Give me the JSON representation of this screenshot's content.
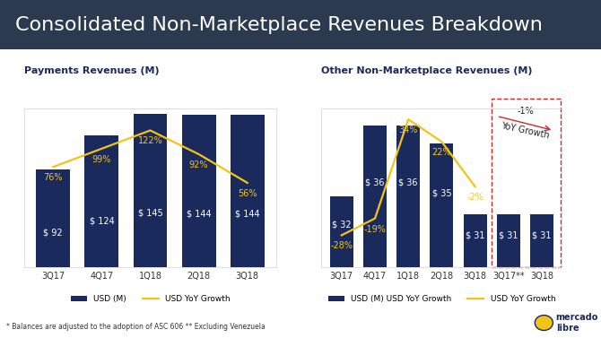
{
  "title": "Consolidated Non-Marketplace Revenues Breakdown",
  "footnote": "* Balances are adjusted to the adoption of ASC 606 ** Excluding Venezuela",
  "logo": "mercado libre",
  "chart_data": [
    {
      "type": "bar",
      "title": "Payments Revenues (M)",
      "categories": [
        "3Q17",
        "4Q17",
        "1Q18",
        "2Q18",
        "3Q18"
      ],
      "ylim": [
        0,
        150
      ],
      "y2lim": [
        -50,
        150
      ],
      "tick_labels": "x",
      "legend": "bottom",
      "data_labels": true,
      "series": [
        {
          "name": "USD (M)",
          "type": "bar",
          "color": "#1b2a5c",
          "values": [
            92,
            124,
            145,
            144,
            144
          ],
          "value_labels": [
            "$ 92",
            "$ 124",
            "$ 145",
            "$ 144",
            "$ 144"
          ]
        },
        {
          "name": "USD YoY Growth",
          "type": "line",
          "axis": "y2",
          "color": "#f2c318",
          "values": [
            76,
            99,
            122,
            92,
            56
          ],
          "value_labels": [
            "76%",
            "99%",
            "122%",
            "92%",
            "56%"
          ]
        }
      ]
    },
    {
      "type": "bar",
      "title": "Other Non-Marketplace Revenues (M)",
      "categories": [
        "3Q17",
        "4Q17",
        "1Q18",
        "2Q18",
        "3Q18",
        "3Q17**",
        "3Q18"
      ],
      "ylim": [
        28,
        37
      ],
      "y2lim": [
        -45,
        40
      ],
      "tick_labels": "x",
      "legend": "bottom",
      "data_labels": true,
      "annotations": [
        "-1%",
        "YoY Growth"
      ],
      "series": [
        {
          "name": "USD (M) USD YoY Growth",
          "type": "bar",
          "color": "#1b2a5c",
          "values": [
            32,
            36,
            36,
            35,
            31,
            31,
            31
          ],
          "value_labels": [
            "$ 32",
            "$ 36",
            "$ 36",
            "$ 35",
            "$ 31",
            "$ 31",
            "$ 31"
          ]
        },
        {
          "name": "USD YoY Growth",
          "type": "line",
          "axis": "y2",
          "color": "#f2c318",
          "values": [
            -28,
            -19,
            34,
            22,
            -2,
            null,
            null
          ],
          "value_labels": [
            "-28%",
            "-19%",
            "34%",
            "22%",
            "-2%",
            null,
            null
          ]
        }
      ]
    }
  ]
}
